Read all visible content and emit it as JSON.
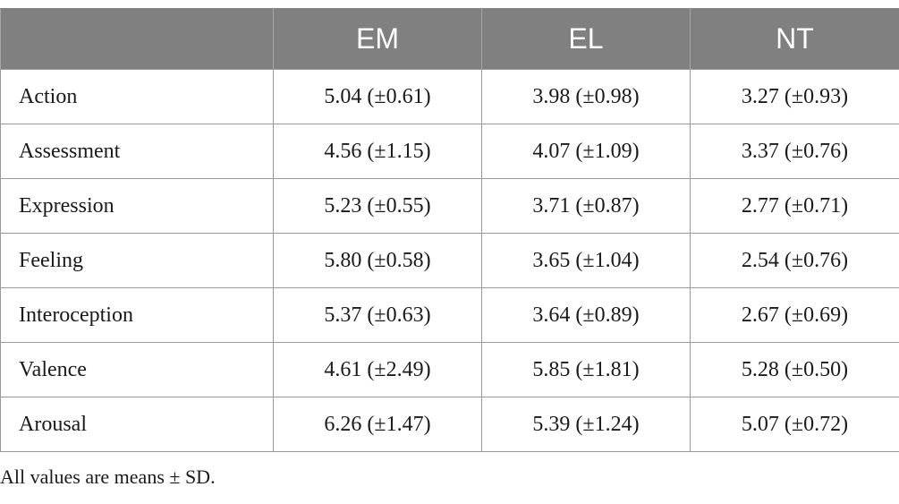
{
  "table": {
    "headers": [
      "",
      "EM",
      "EL",
      "NT"
    ],
    "rows": [
      {
        "label": "Action",
        "values": [
          "5.04 (±0.61)",
          "3.98 (±0.98)",
          "3.27 (±0.93)"
        ]
      },
      {
        "label": "Assessment",
        "values": [
          "4.56 (±1.15)",
          "4.07 (±1.09)",
          "3.37 (±0.76)"
        ]
      },
      {
        "label": "Expression",
        "values": [
          "5.23 (±0.55)",
          "3.71 (±0.87)",
          "2.77 (±0.71)"
        ]
      },
      {
        "label": "Feeling",
        "values": [
          "5.80 (±0.58)",
          "3.65 (±1.04)",
          "2.54 (±0.76)"
        ]
      },
      {
        "label": "Interoception",
        "values": [
          "5.37 (±0.63)",
          "3.64 (±0.89)",
          "2.67 (±0.69)"
        ]
      },
      {
        "label": "Valence",
        "values": [
          "4.61 (±2.49)",
          "5.85 (±1.81)",
          "5.28 (±0.50)"
        ]
      },
      {
        "label": "Arousal",
        "values": [
          "6.26 (±1.47)",
          "5.39 (±1.24)",
          "5.07 (±0.72)"
        ]
      }
    ]
  },
  "footnote": "All values are means ± SD.",
  "colors": {
    "header_bg": "#808080",
    "header_text": "#ffffff",
    "border": "#9a9a9a"
  }
}
